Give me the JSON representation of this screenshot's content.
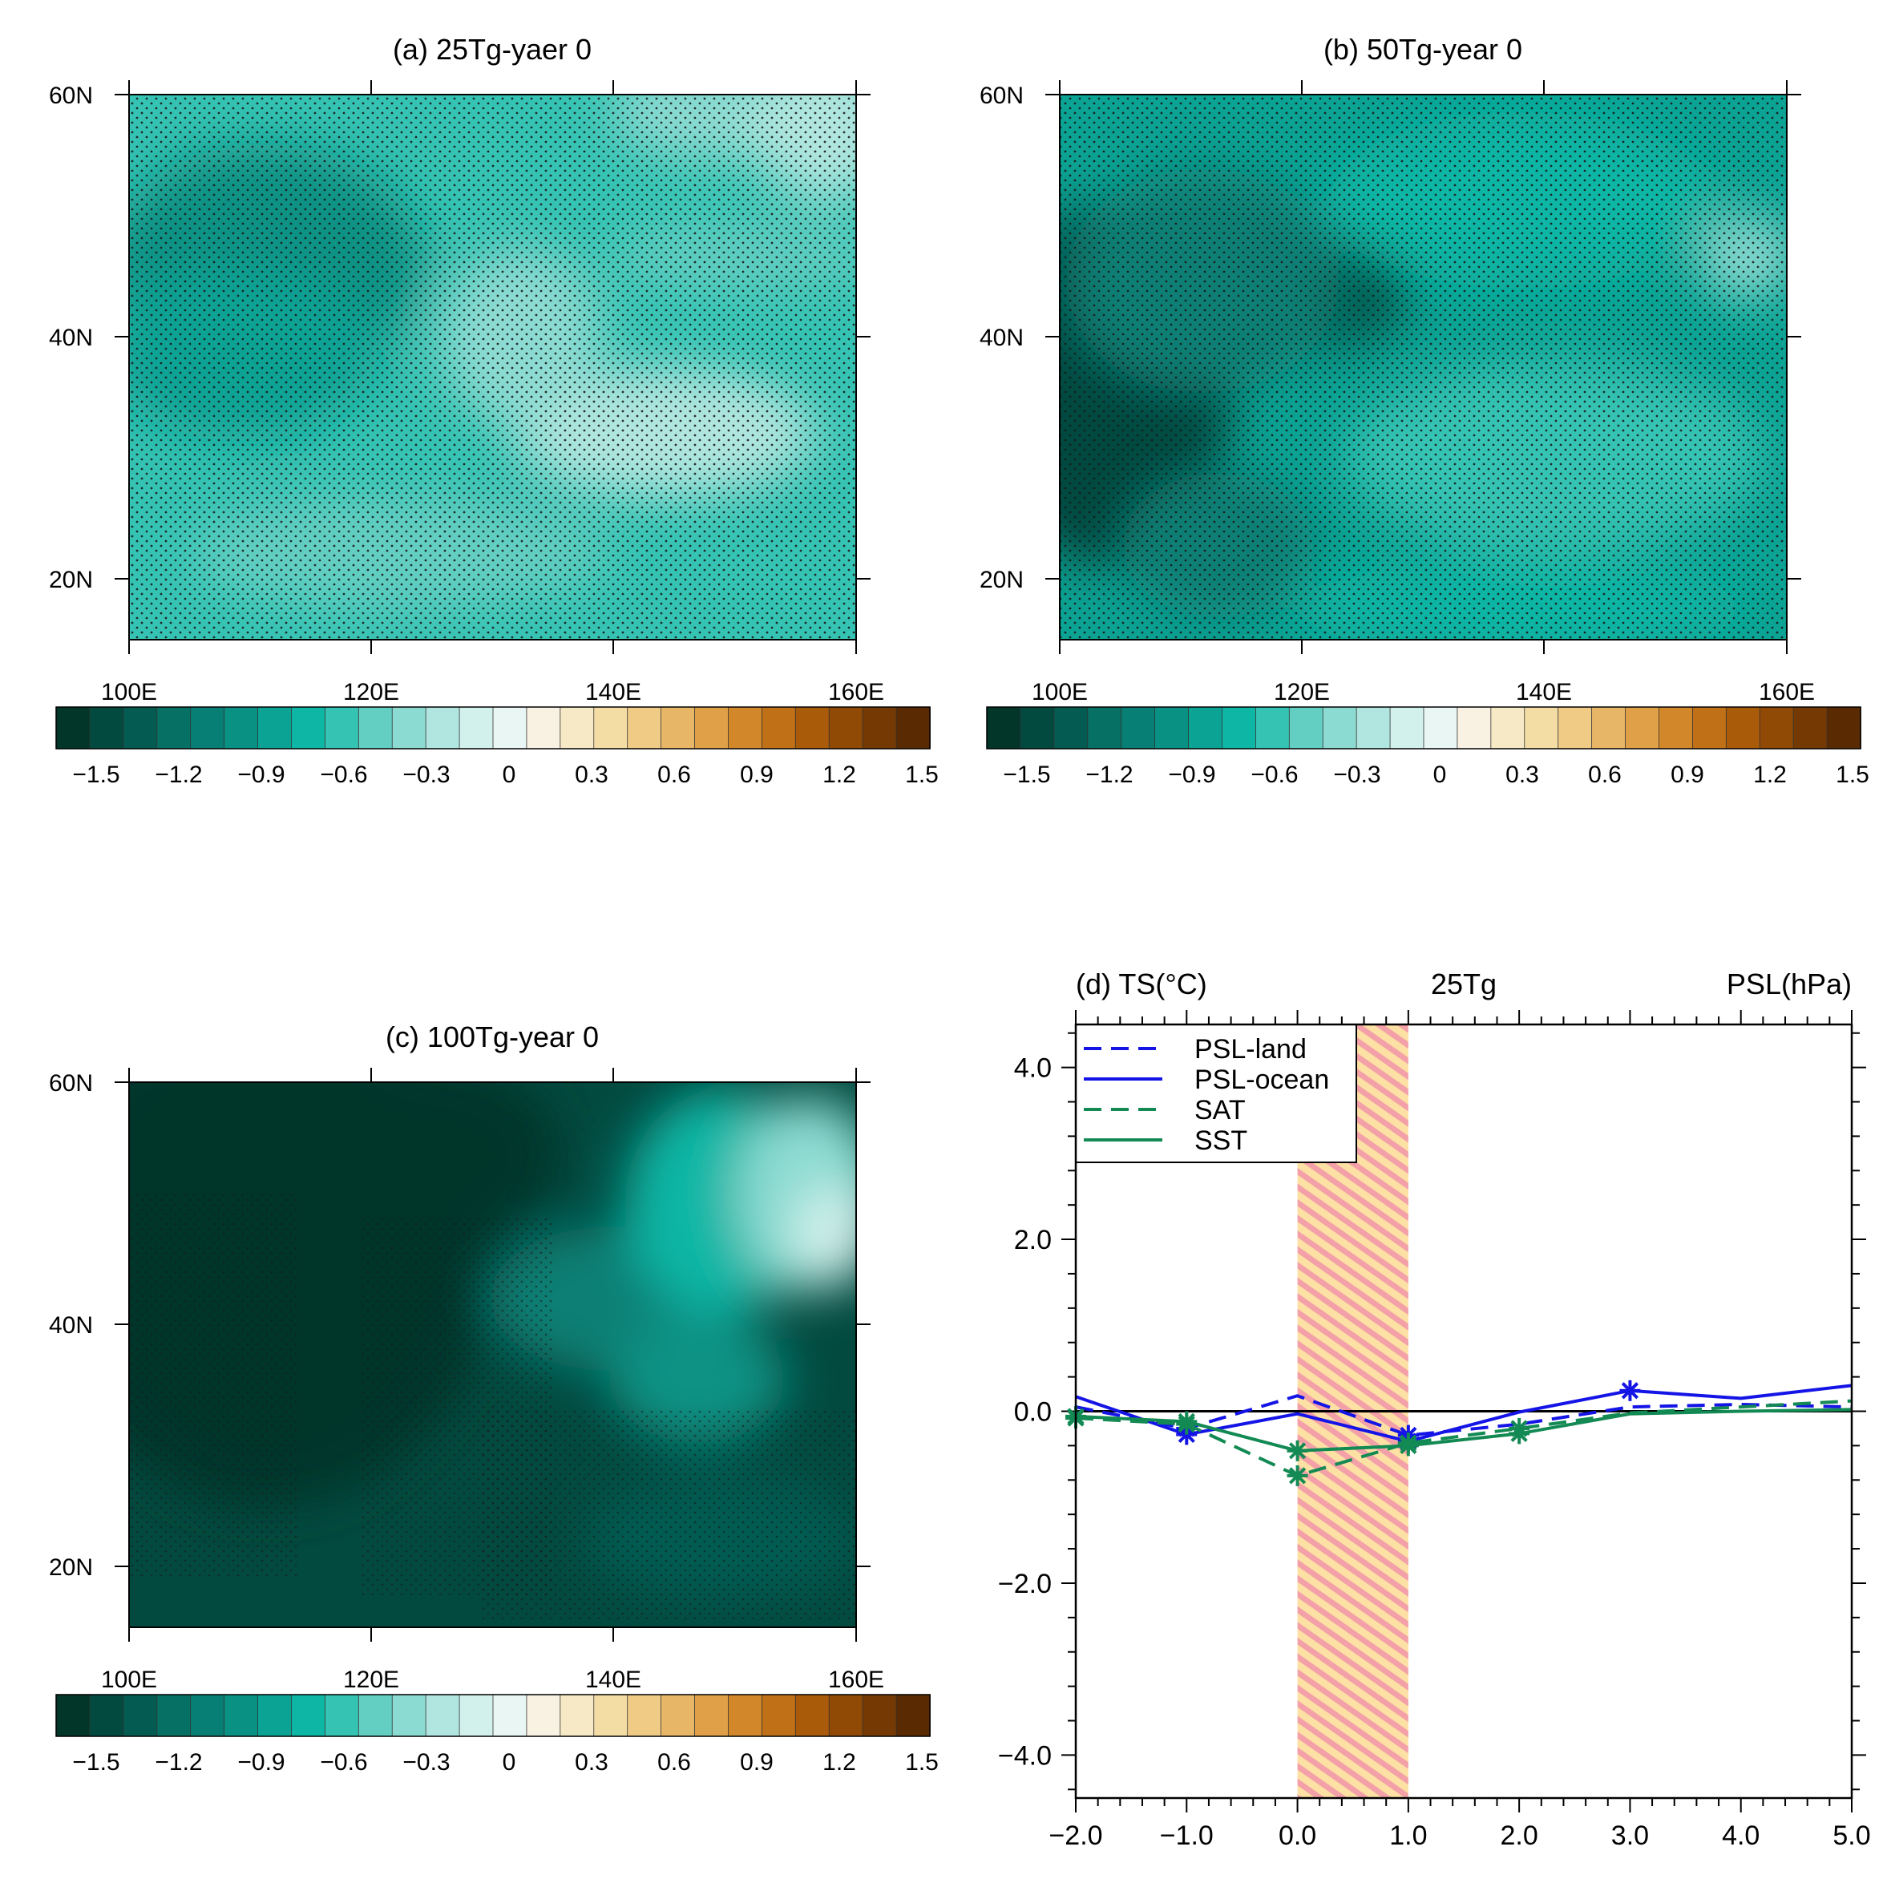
{
  "panels": [
    {
      "id": "a",
      "title": "(a) 25Tg-yaer 0",
      "lat_labels": [
        "60N",
        "40N",
        "20N"
      ],
      "lon_labels": [
        "100E",
        "120E",
        "140E",
        "160E"
      ],
      "colorbar": {
        "labels": [
          "−1.5",
          "−1.2",
          "−0.9",
          "−0.6",
          "−0.3",
          "0",
          "0.3",
          "0.6",
          "0.9",
          "1.2",
          "1.5"
        ]
      }
    },
    {
      "id": "b",
      "title": "(b) 50Tg-year 0",
      "lat_labels": [
        "60N",
        "40N",
        "20N"
      ],
      "lon_labels": [
        "100E",
        "120E",
        "140E",
        "160E"
      ],
      "colorbar": {
        "labels": [
          "−1.5",
          "−1.2",
          "−0.9",
          "−0.6",
          "−0.3",
          "0",
          "0.3",
          "0.6",
          "0.9",
          "1.2",
          "1.5"
        ]
      }
    },
    {
      "id": "c",
      "title": "(c) 100Tg-year 0",
      "lat_labels": [
        "60N",
        "40N",
        "20N"
      ],
      "lon_labels": [
        "100E",
        "120E",
        "140E",
        "160E"
      ],
      "colorbar": {
        "labels": [
          "−1.5",
          "−1.2",
          "−0.9",
          "−0.6",
          "−0.3",
          "0",
          "0.3",
          "0.6",
          "0.9",
          "1.2",
          "1.5"
        ]
      }
    }
  ],
  "colors": {
    "blue": "#1414e6",
    "green": "#138a54",
    "hatch_bg": "#fde0a4",
    "hatch_line": "#f3a0a8",
    "palette": [
      "#013629",
      "#024a40",
      "#045b51",
      "#067064",
      "#077f74",
      "#099284",
      "#0ba394",
      "#0db6a5",
      "#35c3b3",
      "#63cfc2",
      "#8cdbd2",
      "#b0e6df",
      "#d2f0ec",
      "#e9f6f4",
      "#f9f1e1",
      "#f8e9c6",
      "#f4dca5",
      "#efcb86",
      "#e8b667",
      "#dfa047",
      "#d2882a",
      "#c07016",
      "#aa5b0a",
      "#904a05",
      "#753a03",
      "#5a2b02"
    ]
  },
  "chart_data": {
    "type": "line",
    "title_left": "(d) TS(°C)",
    "title_center": "25Tg",
    "title_right": "PSL(hPa)",
    "xlabel": "",
    "ylabel": "",
    "xlim": [
      -2.0,
      5.0
    ],
    "ylim": [
      -4.5,
      4.5
    ],
    "x_ticks": [
      "−2.0",
      "−1.0",
      "0.0",
      "1.0",
      "2.0",
      "3.0",
      "4.0",
      "5.0"
    ],
    "y_ticks": [
      "4.0",
      "2.0",
      "0.0",
      "−2.0",
      "−4.0"
    ],
    "y_tick_values": [
      4.0,
      2.0,
      0.0,
      -2.0,
      -4.0
    ],
    "x_tick_values": [
      -2,
      -1,
      0,
      1,
      2,
      3,
      4,
      5
    ],
    "shaded_x_range": [
      0.0,
      1.0
    ],
    "zero_line": 0.0,
    "x": [
      -2,
      -1,
      0,
      1,
      2,
      3,
      4,
      5
    ],
    "series": [
      {
        "name": "PSL-land",
        "color": "blue",
        "dash": true,
        "values": [
          0.05,
          -0.2,
          0.18,
          -0.28,
          -0.15,
          0.05,
          0.08,
          0.05
        ],
        "markers": [
          1,
          3
        ]
      },
      {
        "name": "PSL-ocean",
        "color": "blue",
        "dash": false,
        "values": [
          0.17,
          -0.27,
          -0.03,
          -0.35,
          -0.01,
          0.24,
          0.15,
          0.3
        ],
        "markers": [
          1,
          3,
          5
        ]
      },
      {
        "name": "SAT",
        "color": "green",
        "dash": true,
        "values": [
          -0.08,
          -0.15,
          -0.75,
          -0.37,
          -0.2,
          -0.02,
          0.05,
          0.12
        ],
        "markers": [
          0,
          1,
          2,
          3,
          4
        ]
      },
      {
        "name": "SST",
        "color": "green",
        "dash": false,
        "values": [
          -0.06,
          -0.12,
          -0.46,
          -0.4,
          -0.26,
          -0.03,
          0.0,
          0.02
        ],
        "markers": [
          0,
          1,
          2,
          3,
          4
        ]
      }
    ],
    "legend": [
      "PSL-land",
      "PSL-ocean",
      "SAT",
      "SST"
    ],
    "legend_position": "top-left"
  }
}
